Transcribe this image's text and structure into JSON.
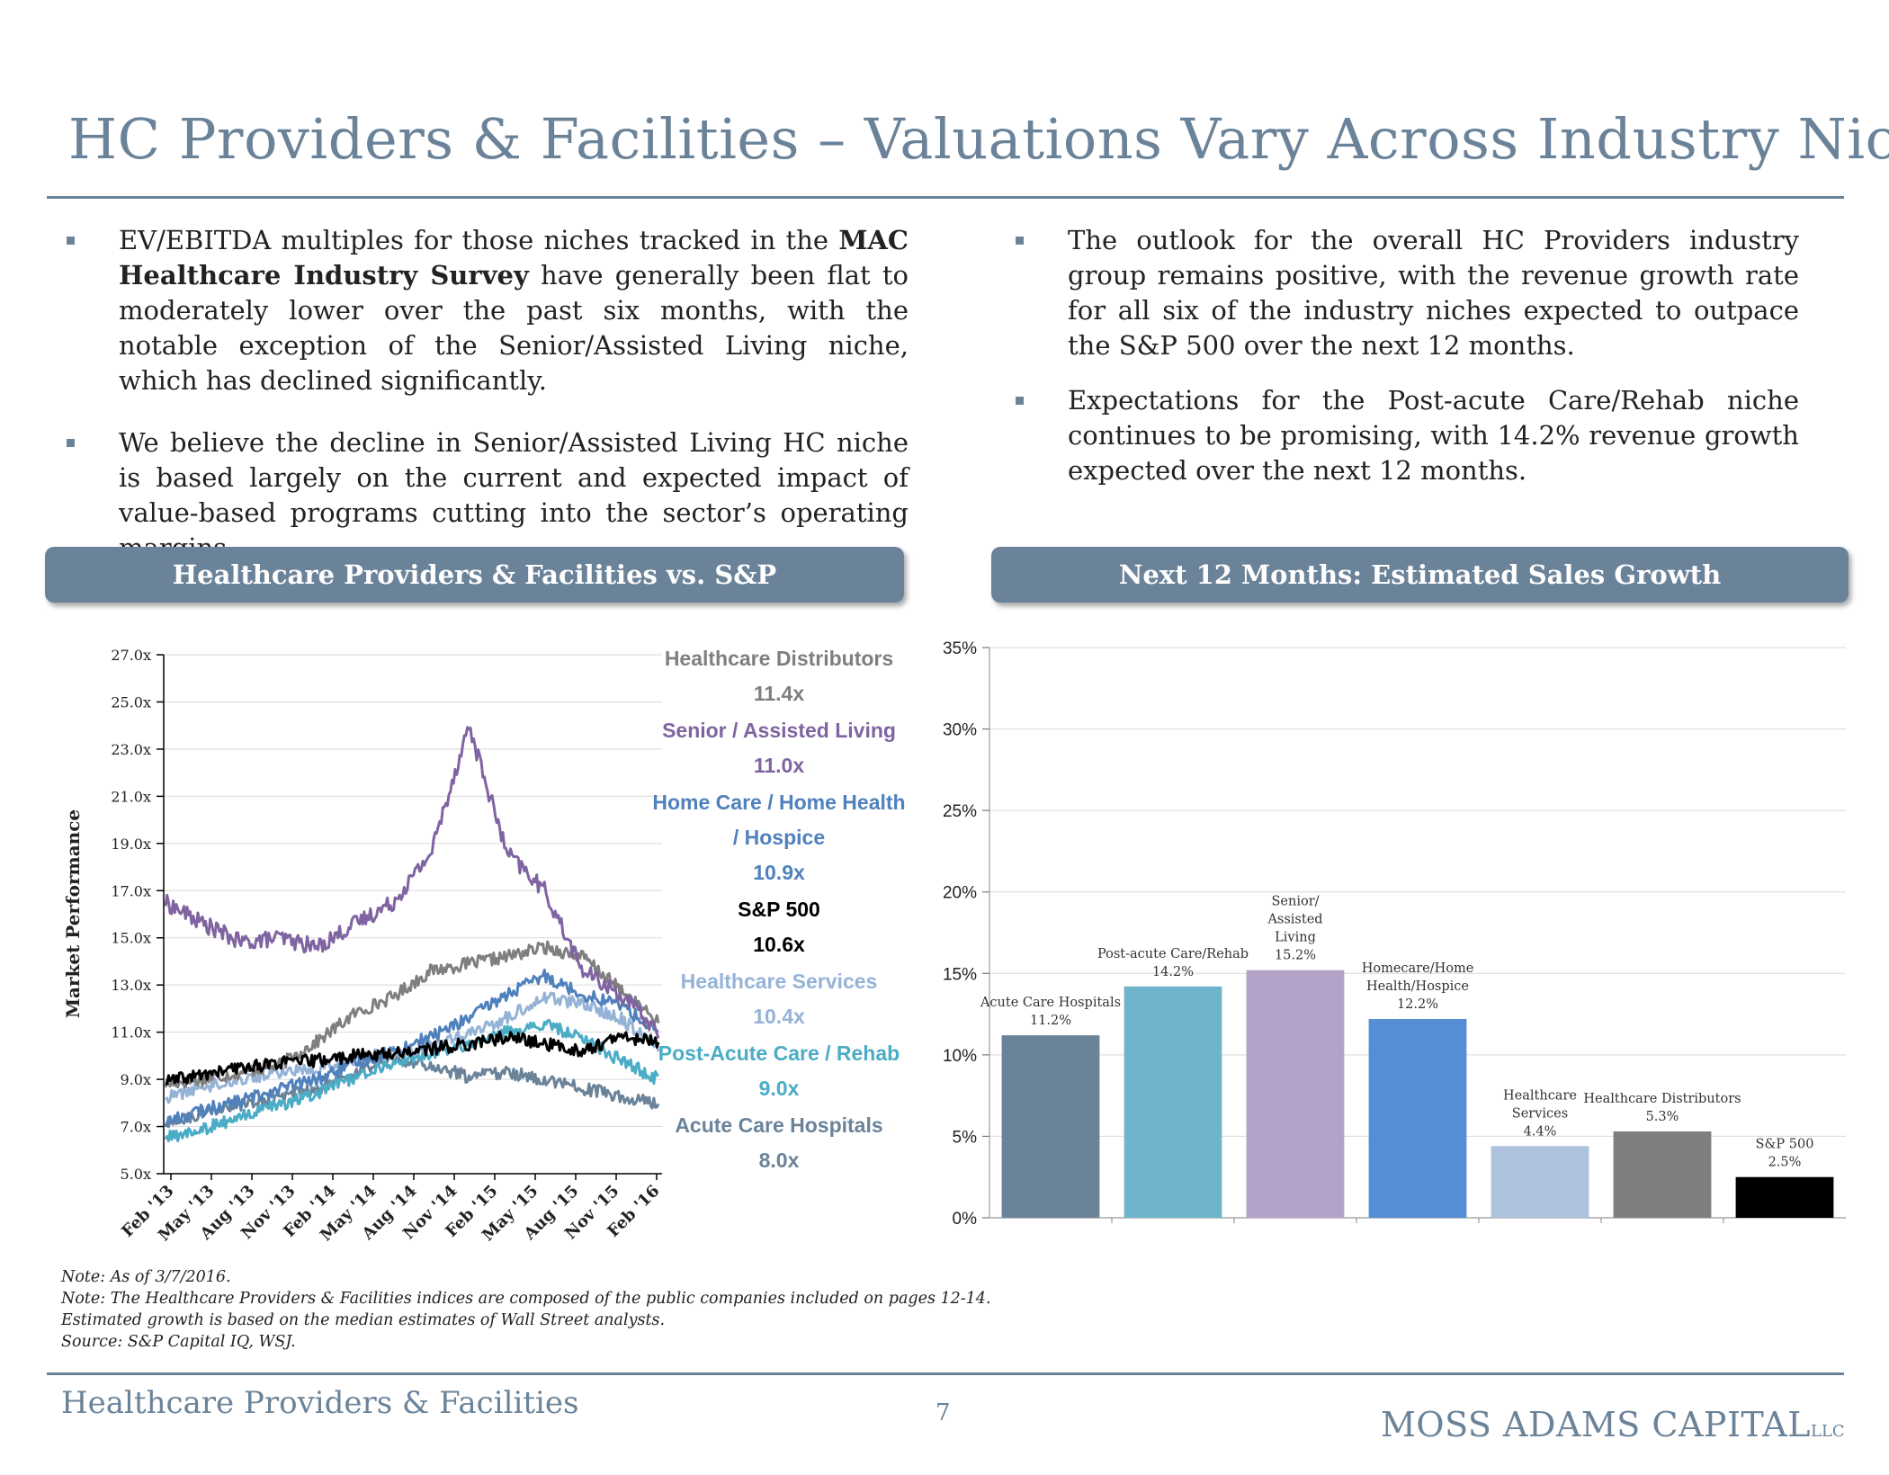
{
  "page": {
    "title": "HC Providers & Facilities – Valuations Vary Across Industry Niche",
    "left_bullets": [
      {
        "parts": [
          {
            "text": "EV/EBITDA multiples for those niches tracked in the ",
            "bold": false
          },
          {
            "text": "MAC Healthcare Industry Survey",
            "bold": true
          },
          {
            "text": " have generally been flat to moderately lower over the past six months, with the notable exception of the Senior/Assisted Living niche, which has declined significantly.",
            "bold": false
          }
        ]
      },
      {
        "parts": [
          {
            "text": "We believe the decline in Senior/Assisted Living HC niche is based largely on the current and expected impact of value-based programs cutting into the sector’s operating margins.",
            "bold": false
          }
        ]
      }
    ],
    "right_bullets": [
      {
        "parts": [
          {
            "text": "The outlook for the overall HC Providers industry group remains positive, with the revenue growth rate for all six of the industry niches expected to outpace the S&P 500 over the next 12 months.",
            "bold": false
          }
        ]
      },
      {
        "parts": [
          {
            "text": "Expectations for the Post-acute Care/Rehab niche continues to be promising, with 14.2% revenue growth expected over the next 12 months.",
            "bold": false
          }
        ]
      }
    ],
    "banner_left": "Healthcare Providers & Facilities vs. S&P",
    "banner_right": "Next  12 Months: Estimated Sales Growth",
    "notes": [
      "Note: As of 3/7/2016.",
      "Note: The Healthcare Providers & Facilities indices are composed of the public companies included on pages 12-14.",
      "Estimated growth is based on the median estimates of Wall Street analysts.",
      "Source: S&P Capital IQ, WSJ."
    ],
    "footer": {
      "section": "Healthcare Providers & Facilities",
      "page_number": "7",
      "logo_main": "MOSS ADAMS CAPITAL",
      "logo_suffix": "LLC"
    }
  },
  "chart_data": [
    {
      "type": "line",
      "ylabel": "Market Performance",
      "ylim": [
        5.0,
        27.0
      ],
      "yticks": [
        "27.0x",
        "25.0x",
        "23.0x",
        "21.0x",
        "19.0x",
        "17.0x",
        "15.0x",
        "13.0x",
        "11.0x",
        "9.0x",
        "7.0x",
        "5.0x"
      ],
      "x_ticks": [
        "Feb '13",
        "May '13",
        "Aug '13",
        "Nov '13",
        "Feb '14",
        "May '14",
        "Aug '14",
        "Nov '14",
        "Feb '15",
        "May '15",
        "Aug '15",
        "Nov '15",
        "Feb '16"
      ],
      "grid": true,
      "legend_position": "right",
      "series": [
        {
          "name": "Healthcare Distributors",
          "label_lines": [
            "Healthcare Distributors"
          ],
          "value_label": "11.4x",
          "color": "#7f7f7f",
          "values": [
            8.8,
            9.0,
            9.3,
            9.6,
            10.6,
            11.8,
            12.5,
            13.6,
            13.9,
            14.2,
            14.6,
            14.2,
            12.8,
            11.4
          ]
        },
        {
          "name": "Senior / Assisted Living",
          "label_lines": [
            "Senior / Assisted Living"
          ],
          "value_label": "11.0x",
          "color": "#8064a2",
          "values": [
            16.5,
            15.6,
            14.8,
            15.0,
            14.6,
            15.6,
            16.5,
            18.6,
            24.0,
            18.6,
            17.0,
            13.6,
            12.6,
            11.0
          ]
        },
        {
          "name": "Home Care / Home Health / Hospice",
          "label_lines": [
            "Home Care / Home Health",
            "/ Hospice"
          ],
          "value_label": "10.9x",
          "color": "#4f81bd",
          "values": [
            7.2,
            7.7,
            8.1,
            8.6,
            9.0,
            9.7,
            10.2,
            10.8,
            11.6,
            12.6,
            13.4,
            12.6,
            12.2,
            10.9
          ]
        },
        {
          "name": "S&P 500",
          "label_lines": [
            "S&P 500"
          ],
          "value_label": "10.6x",
          "color": "#000000",
          "values": [
            8.9,
            9.2,
            9.5,
            9.7,
            9.8,
            10.0,
            10.1,
            10.3,
            10.5,
            10.8,
            10.5,
            10.2,
            10.8,
            10.6
          ]
        },
        {
          "name": "Healthcare Services",
          "label_lines": [
            "Healthcare Services"
          ],
          "value_label": "10.4x",
          "color": "#95b3d7",
          "values": [
            8.2,
            8.7,
            9.0,
            9.3,
            9.5,
            9.9,
            10.1,
            10.4,
            10.9,
            11.6,
            12.5,
            12.2,
            11.6,
            10.4
          ]
        },
        {
          "name": "Post-Acute Care / Rehab",
          "label_lines": [
            "Post-Acute Care / Rehab"
          ],
          "value_label": "9.0x",
          "color": "#4bacc6",
          "values": [
            6.5,
            6.9,
            7.4,
            7.9,
            8.4,
            9.1,
            9.7,
            10.1,
            10.5,
            11.0,
            11.3,
            10.8,
            9.8,
            9.0
          ]
        },
        {
          "name": "Acute Care Hospitals",
          "label_lines": [
            "Acute Care Hospitals"
          ],
          "value_label": "8.0x",
          "color": "#6b8399",
          "values": [
            7.0,
            7.6,
            7.9,
            8.2,
            8.6,
            9.3,
            9.9,
            9.6,
            9.1,
            9.3,
            9.0,
            8.6,
            8.3,
            8.0
          ]
        }
      ]
    },
    {
      "type": "bar",
      "ylim": [
        0,
        35
      ],
      "yticks": [
        "35%",
        "30%",
        "25%",
        "20%",
        "15%",
        "10%",
        "5%",
        "0%"
      ],
      "grid": true,
      "categories": [
        "Acute Care Hospitals",
        "Post-acute Care/Rehab",
        "Senior/Assisted Living",
        "Homecare/Home Health/Hospice",
        "Healthcare Services",
        "Healthcare Distributors",
        "S&P 500"
      ],
      "values": [
        11.2,
        14.2,
        15.2,
        12.2,
        4.4,
        5.3,
        2.5
      ],
      "value_labels": [
        "11.2%",
        "14.2%",
        "15.2%",
        "12.2%",
        "4.4%",
        "5.3%",
        "2.5%"
      ],
      "label_lines": [
        [
          "Acute Care Hospitals"
        ],
        [
          "Post-acute Care/Rehab"
        ],
        [
          "Senior/",
          "Assisted",
          "Living"
        ],
        [
          "Homecare/Home",
          "Health/Hospice"
        ],
        [
          "Healthcare",
          "Services"
        ],
        [
          "Healthcare Distributors"
        ],
        [
          "S&P 500"
        ]
      ],
      "colors": [
        "#6b8399",
        "#70b4cc",
        "#b3a2c7",
        "#558ed5",
        "#aec3de",
        "#7f7f7f",
        "#000000"
      ]
    }
  ]
}
